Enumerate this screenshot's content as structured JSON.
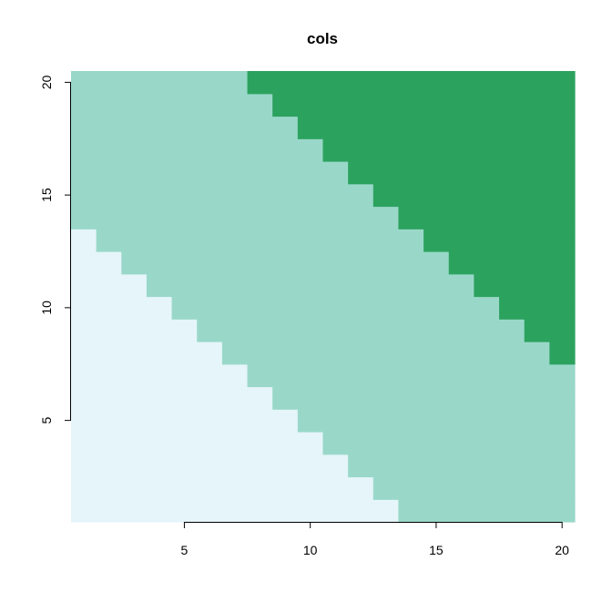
{
  "chart_data": {
    "type": "heatmap",
    "title": "cols",
    "xlabel": "",
    "ylabel": "",
    "x_range": [
      1,
      20
    ],
    "y_range": [
      1,
      20
    ],
    "xlim": [
      0.5,
      20.5
    ],
    "ylim": [
      0.5,
      20.5
    ],
    "x_ticks": [
      5,
      10,
      15,
      20
    ],
    "y_ticks": [
      5,
      10,
      15,
      20
    ],
    "rule": "value = x + y",
    "breaks": [
      14,
      27
    ],
    "classes": [
      {
        "range": "x + y <= 14",
        "color": "#e5f5f9"
      },
      {
        "range": "15 <= x + y <= 27",
        "color": "#99d8c9"
      },
      {
        "range": "x + y >= 28",
        "color": "#2ca25f"
      }
    ],
    "grid": false,
    "legend": "none"
  }
}
